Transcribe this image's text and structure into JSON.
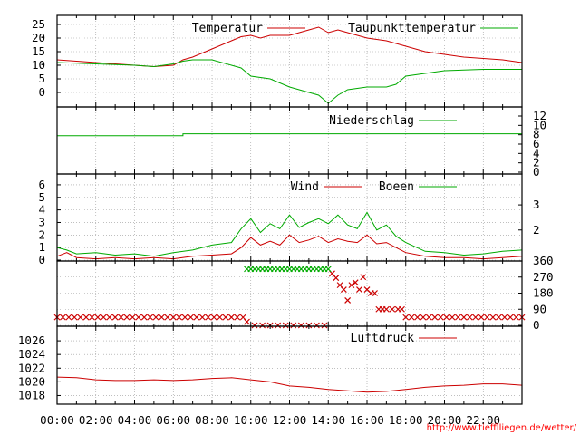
{
  "footer_url": "http://www.tiefflliegen.de/wetter/",
  "colors": {
    "red": "#cc0000",
    "green": "#00aa00",
    "grid": "#999999",
    "axis": "#000000"
  },
  "x_axis": {
    "range_hours": [
      0,
      24
    ],
    "tick_labels": [
      "00:00",
      "02:00",
      "04:00",
      "06:00",
      "08:00",
      "10:00",
      "12:00",
      "14:00",
      "16:00",
      "18:00",
      "20:00",
      "22:00"
    ]
  },
  "chart_data": [
    {
      "type": "line",
      "ylim": [
        -5,
        28
      ],
      "yticks": [
        "25",
        "20",
        "15",
        "10",
        "5",
        "0"
      ],
      "ytick_values": [
        25,
        20,
        15,
        10,
        5,
        0
      ],
      "series": [
        {
          "name": "Temperatur",
          "color": "#cc0000",
          "x": [
            0,
            2,
            4,
            5,
            6,
            6.5,
            7,
            8,
            9,
            9.5,
            10,
            10.5,
            11,
            12,
            12.5,
            13,
            13.5,
            14,
            14.5,
            15,
            16,
            17,
            18,
            19,
            20,
            21,
            22,
            23,
            24
          ],
          "y": [
            12,
            11,
            10,
            9.5,
            10,
            12,
            13,
            16,
            19,
            20.5,
            21,
            20,
            21,
            21,
            22,
            23,
            24,
            22,
            23,
            22,
            20,
            19,
            17,
            15,
            14,
            13,
            12.5,
            12,
            11
          ]
        },
        {
          "name": "Taupunkttemperatur",
          "color": "#00aa00",
          "x": [
            0,
            2,
            4,
            5,
            6,
            6.5,
            7,
            8,
            9,
            9.5,
            10,
            11,
            12,
            13,
            13.5,
            14,
            14.5,
            15,
            16,
            17,
            17.5,
            18,
            19,
            20,
            22,
            24
          ],
          "y": [
            11,
            10.5,
            10,
            9.5,
            10.5,
            11.5,
            12,
            12,
            10,
            9,
            6,
            5,
            2,
            0,
            -1,
            -4,
            -1,
            1,
            2,
            2,
            3,
            6,
            7,
            8,
            8.5,
            8.5
          ]
        }
      ]
    },
    {
      "type": "line",
      "ylim": [
        0,
        12
      ],
      "yticks": [
        "12",
        "10",
        "8",
        "6",
        "4",
        "2",
        "0"
      ],
      "ytick_values": [
        12,
        10,
        8,
        6,
        4,
        2,
        0
      ],
      "series": [
        {
          "name": "Niederschlag",
          "color": "#00aa00",
          "x": [
            0,
            6.5,
            6.5,
            24
          ],
          "y": [
            7.8,
            7.8,
            8.2,
            8.2
          ]
        }
      ]
    },
    {
      "type": "line",
      "ylim": [
        0,
        6.5
      ],
      "left_yticks": [
        "6",
        "5",
        "4",
        "3",
        "2",
        "1",
        "0"
      ],
      "left_ytick_values": [
        6,
        5,
        4,
        3,
        2,
        1,
        0
      ],
      "right_yticks": [
        "3",
        "2"
      ],
      "right_ytick_values": [
        4.4,
        2.4
      ],
      "series": [
        {
          "name": "Wind",
          "color": "#cc0000",
          "x": [
            0,
            0.5,
            1,
            2,
            3,
            4,
            5,
            6,
            7,
            8,
            9,
            9.5,
            10,
            10.5,
            11,
            11.5,
            12,
            12.5,
            13,
            13.5,
            14,
            14.5,
            15,
            15.5,
            16,
            16.5,
            17,
            17.5,
            18,
            19,
            20,
            21,
            22,
            23,
            24
          ],
          "y": [
            0.3,
            0.6,
            0.2,
            0.1,
            0.2,
            0.1,
            0.2,
            0.1,
            0.3,
            0.4,
            0.5,
            1.0,
            1.8,
            1.2,
            1.5,
            1.2,
            2.0,
            1.4,
            1.6,
            1.9,
            1.4,
            1.7,
            1.5,
            1.4,
            2.0,
            1.3,
            1.4,
            1.0,
            0.6,
            0.3,
            0.2,
            0.2,
            0.1,
            0.2,
            0.3
          ]
        },
        {
          "name": "Boeen",
          "color": "#00aa00",
          "x": [
            0,
            0.5,
            1,
            2,
            3,
            4,
            5,
            6,
            7,
            8,
            9,
            9.5,
            10,
            10.5,
            11,
            11.5,
            12,
            12.5,
            13,
            13.5,
            14,
            14.5,
            15,
            15.5,
            16,
            16.5,
            17,
            17.5,
            18,
            19,
            20,
            21,
            22,
            23,
            24
          ],
          "y": [
            1.0,
            0.8,
            0.5,
            0.6,
            0.4,
            0.5,
            0.3,
            0.6,
            0.8,
            1.2,
            1.4,
            2.5,
            3.3,
            2.2,
            2.9,
            2.5,
            3.6,
            2.6,
            3.0,
            3.3,
            2.9,
            3.6,
            2.8,
            2.5,
            3.8,
            2.4,
            2.8,
            1.9,
            1.4,
            0.7,
            0.6,
            0.4,
            0.5,
            0.7,
            0.8
          ]
        }
      ]
    },
    {
      "type": "scatter",
      "ylim": [
        0,
        360
      ],
      "yticks": [
        "360",
        "270",
        "180",
        "90",
        "0"
      ],
      "ytick_values": [
        360,
        270,
        180,
        90,
        0
      ],
      "series": [
        {
          "name": "",
          "color": "#cc0000",
          "x": [
            0,
            0.3,
            0.6,
            0.9,
            1.2,
            1.5,
            1.8,
            2.1,
            2.4,
            2.7,
            3.0,
            3.3,
            3.6,
            3.9,
            4.2,
            4.5,
            4.8,
            5.1,
            5.4,
            5.7,
            6.0,
            6.3,
            6.6,
            6.9,
            7.2,
            7.5,
            7.8,
            8.1,
            8.4,
            8.7,
            9.0,
            9.3,
            9.6,
            9.8,
            10.2,
            10.6,
            11.0,
            11.4,
            11.8,
            12.2,
            12.6,
            13.0,
            13.4,
            13.8,
            14.2,
            14.4,
            14.6,
            14.8,
            15.0,
            15.2,
            15.4,
            15.6,
            15.8,
            16.0,
            16.2,
            16.4,
            16.6,
            16.8,
            17.0,
            17.3,
            17.6,
            17.8,
            18.0,
            18.3,
            18.6,
            18.9,
            19.2,
            19.5,
            19.8,
            20.1,
            20.4,
            20.7,
            21.0,
            21.3,
            21.6,
            21.9,
            22.2,
            22.5,
            22.8,
            23.1,
            23.4,
            23.7,
            24.0
          ],
          "y": [
            45,
            45,
            45,
            45,
            45,
            45,
            45,
            45,
            45,
            45,
            45,
            45,
            45,
            45,
            45,
            45,
            45,
            45,
            45,
            45,
            45,
            45,
            45,
            45,
            45,
            45,
            45,
            45,
            45,
            45,
            45,
            45,
            45,
            20,
            0,
            0,
            0,
            0,
            0,
            0,
            0,
            0,
            0,
            0,
            290,
            265,
            225,
            200,
            140,
            225,
            240,
            200,
            270,
            200,
            180,
            180,
            90,
            90,
            90,
            90,
            90,
            90,
            45,
            45,
            45,
            45,
            45,
            45,
            45,
            45,
            45,
            45,
            45,
            45,
            45,
            45,
            45,
            45,
            45,
            45,
            45,
            45,
            45
          ]
        },
        {
          "name": "",
          "color": "#00aa00",
          "x": [
            9.8,
            10.0,
            10.2,
            10.4,
            10.6,
            10.8,
            11.0,
            11.2,
            11.4,
            11.6,
            11.8,
            12.0,
            12.2,
            12.4,
            12.6,
            12.8,
            13.0,
            13.2,
            13.4,
            13.6,
            13.8,
            14.0
          ],
          "y": [
            315,
            315,
            315,
            315,
            315,
            315,
            315,
            315,
            315,
            315,
            315,
            315,
            315,
            315,
            315,
            315,
            315,
            315,
            315,
            315,
            315,
            315
          ]
        }
      ]
    },
    {
      "type": "line",
      "ylim": [
        1017,
        1028
      ],
      "yticks": [
        "1026",
        "1024",
        "1022",
        "1020",
        "1018"
      ],
      "ytick_values": [
        1026,
        1024,
        1022,
        1020,
        1018
      ],
      "series": [
        {
          "name": "Luftdruck",
          "color": "#cc0000",
          "x": [
            0,
            1,
            2,
            3,
            4,
            5,
            6,
            7,
            8,
            9,
            10,
            11,
            12,
            13,
            14,
            15,
            16,
            17,
            18,
            19,
            20,
            21,
            22,
            23,
            24
          ],
          "y": [
            1020.7,
            1020.6,
            1020.3,
            1020.2,
            1020.2,
            1020.3,
            1020.2,
            1020.3,
            1020.5,
            1020.6,
            1020.3,
            1020.0,
            1019.4,
            1019.2,
            1018.9,
            1018.7,
            1018.5,
            1018.6,
            1018.9,
            1019.2,
            1019.4,
            1019.5,
            1019.7,
            1019.7,
            1019.5
          ]
        }
      ]
    }
  ]
}
